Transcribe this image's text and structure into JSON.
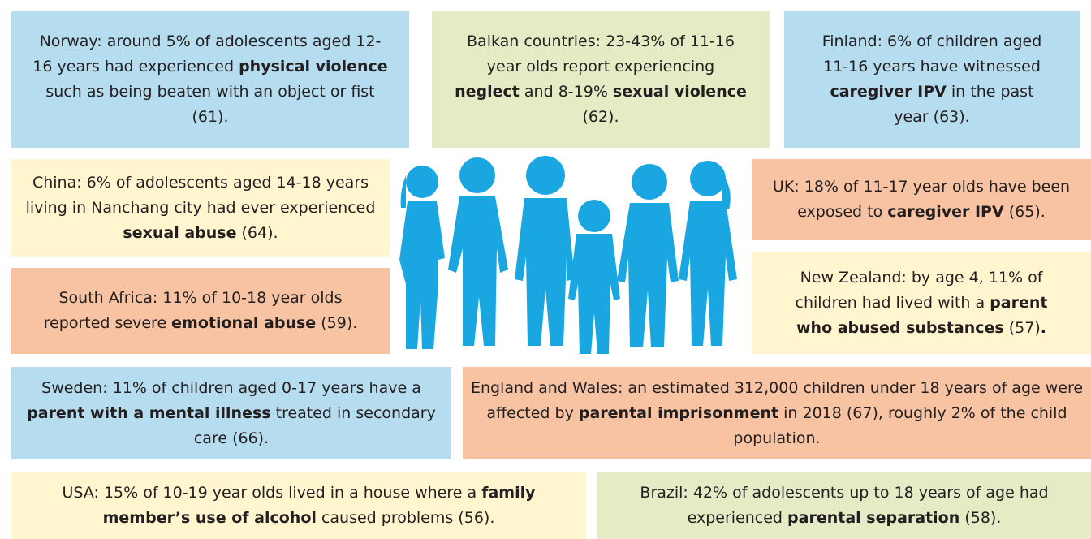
{
  "boxes": [
    {
      "parts": [
        "Norway:  around 5% of adolescents aged 12-16 years had experienced ",
        "physical violence",
        " such as being beaten with an object or fist (61)."
      ]
    },
    {
      "parts": [
        "Balkan countries: 23-43% of 11-16 year olds report experiencing ",
        "neglect",
        " and 8-19% ",
        "sexual violence",
        " (62)."
      ]
    },
    {
      "parts": [
        "Finland: 6% of children aged 11-16 years have witnessed ",
        "caregiver IPV",
        " in the past year (63)."
      ]
    },
    {
      "parts": [
        "China: 6% of adolescents aged 14-18 years living in Nanchang city had ever experienced ",
        "sexual abuse",
        " (64)."
      ]
    },
    {
      "parts": [
        "UK: 18% of 11-17 year olds have been exposed to ",
        "caregiver IPV",
        " (65)."
      ]
    },
    {
      "parts": [
        "South Africa: 11% of 10-18 year olds reported severe ",
        "emotional abuse",
        " (59)."
      ]
    },
    {
      "parts": [
        "New Zealand: by age 4, 11% of children had lived with a ",
        "parent who abused substances",
        " (57)",
        "."
      ]
    },
    {
      "parts": [
        "Sweden: 11% of children aged 0-17 years have a ",
        "parent with a mental illness",
        " treated in secondary care (66)."
      ]
    },
    {
      "parts": [
        "England and Wales: an estimated 312,000 children under 18 years of age were  affected by ",
        "parental imprisonment",
        " in 2018 (67), roughly 2% of the child population."
      ]
    },
    {
      "parts": [
        "USA: 15% of 10-19 year olds lived in a house where a ",
        "family member’s use of alcohol",
        " caused problems (56)."
      ]
    },
    {
      "parts": [
        "Brazil: 42% of adolescents up to 18 years of age had experienced ",
        "parental separation",
        " (58)."
      ]
    }
  ]
}
